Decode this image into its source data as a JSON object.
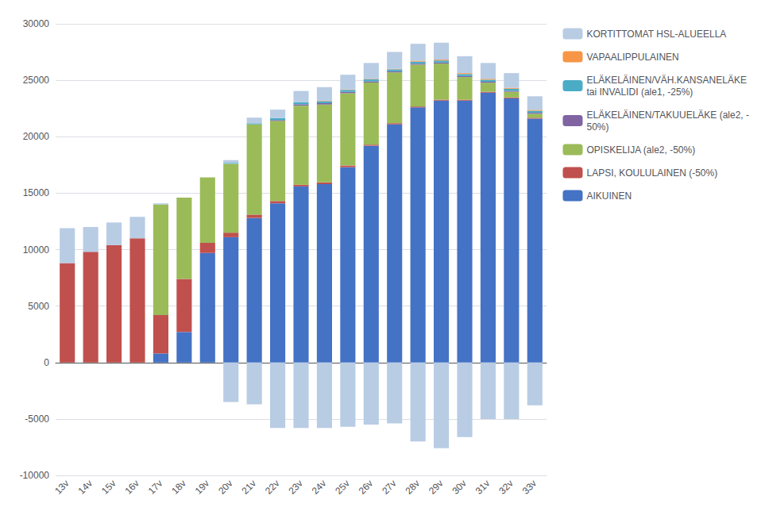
{
  "chart_data": {
    "type": "bar",
    "stacked": true,
    "grid": true,
    "legend": "right",
    "categories": [
      "13v",
      "14v",
      "15v",
      "16v",
      "17v",
      "18v",
      "19v",
      "20v",
      "21v",
      "22v",
      "23v",
      "24v",
      "25v",
      "26v",
      "27v",
      "28v",
      "29v",
      "30v",
      "31v",
      "32v",
      "33v"
    ],
    "ylim": [
      -10000,
      30000
    ],
    "yticks": [
      -10000,
      -5000,
      0,
      5000,
      10000,
      15000,
      20000,
      25000,
      30000
    ],
    "series": [
      {
        "color": "#B8CCE4",
        "values": [
          0,
          0,
          0,
          0,
          0,
          0,
          0,
          -3500,
          -3700,
          -5800,
          -5800,
          -5800,
          -5700,
          -5500,
          -5400,
          -7000,
          -7600,
          -6600,
          -5000,
          -5000,
          -3800
        ]
      },
      {
        "name": "AIKUINEN",
        "color": "#4472C4",
        "values": [
          0,
          0,
          0,
          0,
          800,
          2700,
          9700,
          11100,
          12800,
          14100,
          15600,
          15800,
          17300,
          19200,
          21100,
          22600,
          23200,
          23200,
          23900,
          23400,
          21600
        ]
      },
      {
        "name": "LAPSI, KOULULAINEN (-50%)",
        "color": "#C0504D",
        "values": [
          8800,
          9800,
          10400,
          11000,
          3400,
          4700,
          900,
          400,
          300,
          200,
          150,
          150,
          150,
          100,
          100,
          80,
          80,
          80,
          80,
          80,
          80
        ]
      },
      {
        "name": "OPISKELIJA (ale2, -50%)",
        "color": "#9BBB59",
        "values": [
          0,
          0,
          0,
          0,
          9800,
          7200,
          5800,
          6100,
          8000,
          7100,
          7000,
          6900,
          6400,
          5500,
          4500,
          3700,
          3200,
          2000,
          800,
          500,
          350
        ]
      },
      {
        "name": "ELÄKELÄINEN/TAKUUELÄKE (ale2, -\n50%)",
        "color": "#8064A2",
        "values": [
          0,
          0,
          0,
          0,
          0,
          0,
          0,
          0,
          0,
          80,
          120,
          120,
          120,
          110,
          90,
          90,
          90,
          90,
          90,
          90,
          90
        ]
      },
      {
        "name": "ELÄKELÄINEN/VÄH.KANSANELÄKE\ntai INVALIDI (ale1, -25%)",
        "color": "#4BACC6",
        "values": [
          0,
          0,
          0,
          0,
          0,
          0,
          0,
          80,
          90,
          170,
          180,
          180,
          180,
          180,
          180,
          180,
          180,
          180,
          180,
          180,
          180
        ]
      },
      {
        "name": "VAPAALIPPULAINEN",
        "color": "#F79646",
        "values": [
          0,
          0,
          0,
          0,
          0,
          0,
          0,
          0,
          0,
          0,
          0,
          40,
          40,
          40,
          40,
          80,
          80,
          80,
          80,
          80,
          80
        ]
      },
      {
        "name": "KORTITTOMAT HSL-ALUEELLA",
        "color": "#B8CCE4",
        "values": [
          3100,
          2200,
          2000,
          1900,
          100,
          0,
          0,
          250,
          500,
          750,
          1000,
          1200,
          1300,
          1400,
          1500,
          1500,
          1500,
          1500,
          1400,
          1300,
          1200
        ]
      }
    ]
  }
}
